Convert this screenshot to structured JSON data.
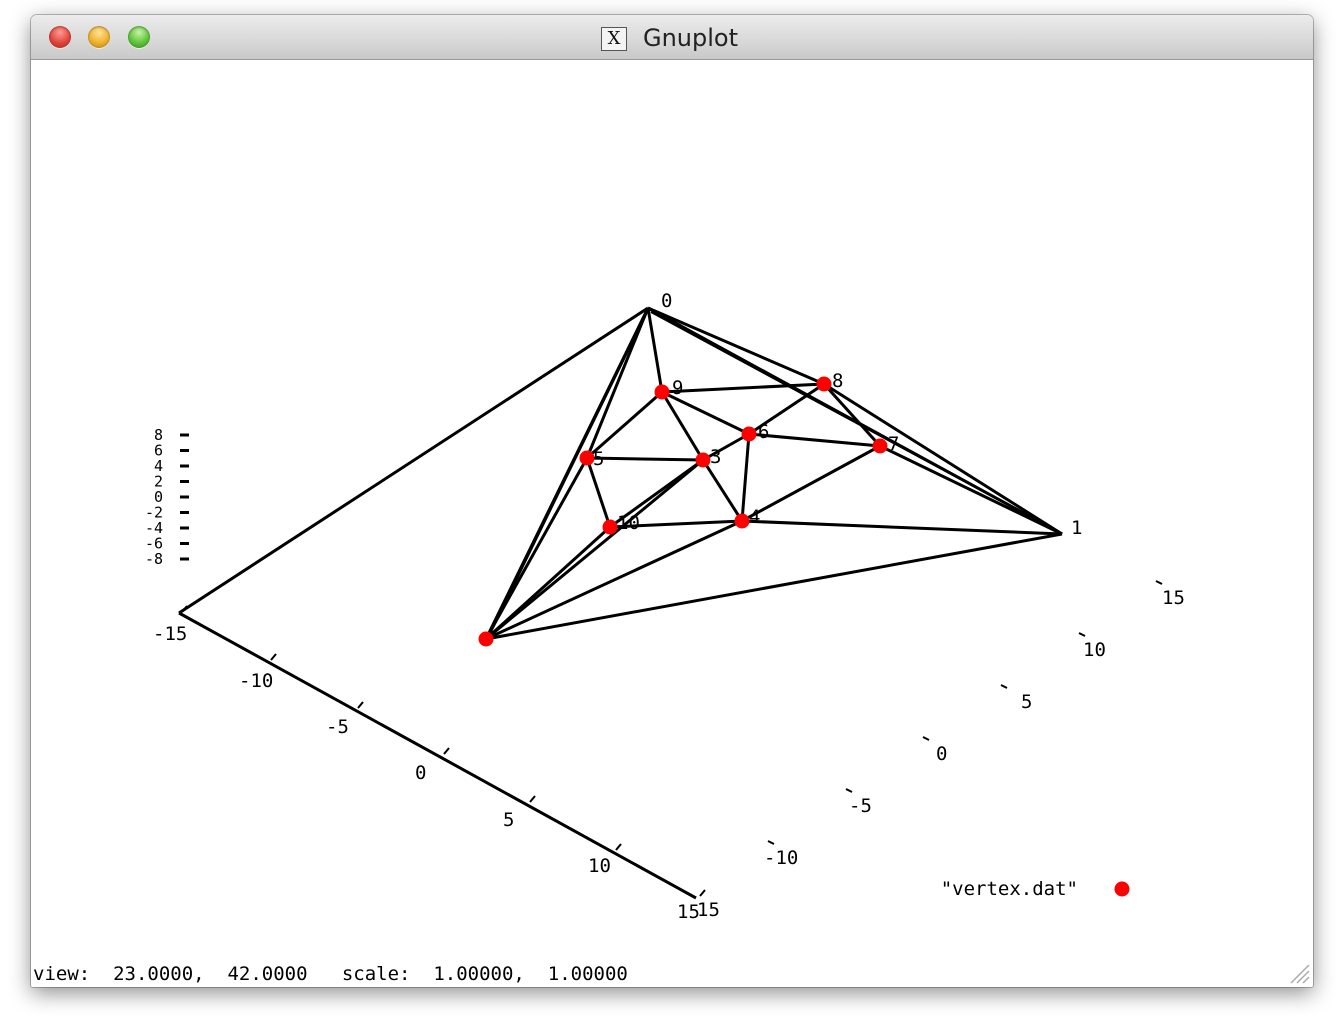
{
  "window": {
    "title": "Gnuplot",
    "app_icon": "x11-icon"
  },
  "status": {
    "text": "view:  23.0000,  42.0000   scale:  1.00000,  1.00000"
  },
  "legend": {
    "label": "\"vertex.dat\""
  },
  "chart_data": {
    "type": "scatter",
    "projection": "3d",
    "view": {
      "rot_x": 23.0,
      "rot_z": 42.0,
      "scale": 1.0,
      "scale_z": 1.0
    },
    "colors": {
      "points": "#ff0000",
      "edges": "#000000"
    },
    "vertex_labels": [
      "0",
      "1",
      "3",
      "4",
      "5",
      "6",
      "7",
      "8",
      "8",
      "9",
      "10"
    ],
    "x_ticks": [
      "-15",
      "-10",
      "-5",
      "0",
      "5",
      "10",
      "15"
    ],
    "y_ticks": [
      "-10",
      "-5",
      "0",
      "5",
      "10",
      "15"
    ],
    "z_ticks": [
      "8",
      "6",
      "4",
      "2",
      "0",
      "-2",
      "-4",
      "-6",
      "-8"
    ],
    "series": [
      {
        "name": "\"vertex.dat\"",
        "style": "points",
        "color": "#ff0000"
      }
    ],
    "legend_position": "bottom-right"
  }
}
